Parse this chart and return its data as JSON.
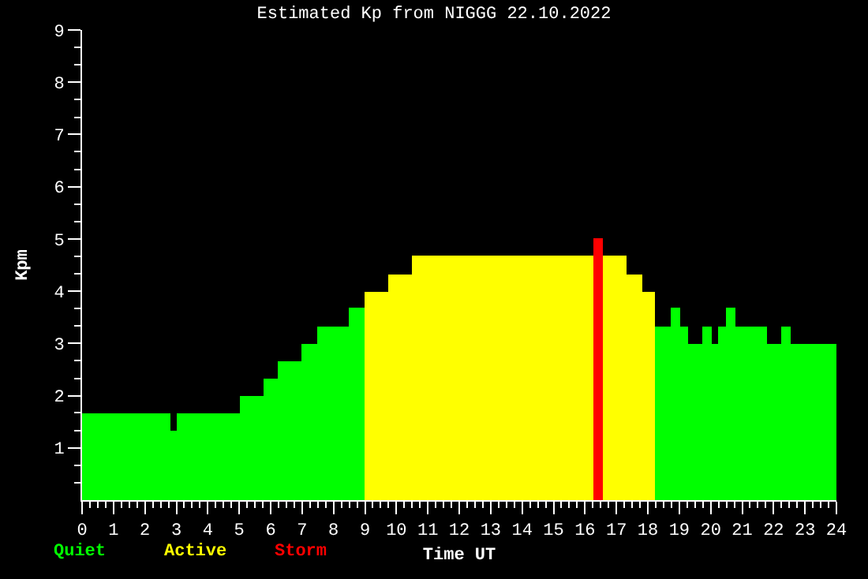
{
  "chart_data": {
    "type": "bar",
    "title": "Estimated Kp from NIGGG 22.10.2022",
    "xlabel": "Time UT",
    "ylabel": "Kpm",
    "x": [
      1.4,
      2.9,
      4.0,
      5.375,
      6.0,
      6.625,
      7.25,
      8.0,
      8.75,
      9.375,
      10.125,
      13.375,
      16.4,
      16.925,
      17.55,
      18.025,
      18.5,
      18.9,
      19.175,
      19.525,
      19.9,
      20.15,
      20.375,
      20.65,
      21.3,
      22.025,
      22.4,
      23.275
    ],
    "series": [
      {
        "name": "Quiet",
        "color": "#00ff00",
        "values": [
          1.67,
          1.33,
          1.67,
          2.0,
          2.33,
          2.67,
          3.0,
          3.33,
          3.67,
          null,
          null,
          null,
          null,
          null,
          null,
          null,
          3.33,
          3.67,
          3.33,
          3.0,
          3.33,
          3.0,
          3.33,
          3.67,
          3.33,
          3.0,
          3.33,
          3.0
        ]
      },
      {
        "name": "Active",
        "color": "#ffff00",
        "values": [
          null,
          null,
          null,
          null,
          null,
          null,
          null,
          null,
          null,
          4.0,
          4.33,
          4.67,
          null,
          4.67,
          4.33,
          4.0,
          null,
          null,
          null,
          null,
          null,
          null,
          null,
          null,
          null,
          null,
          null,
          null
        ]
      },
      {
        "name": "Storm",
        "color": "#ff0000",
        "values": [
          null,
          null,
          null,
          null,
          null,
          null,
          null,
          null,
          null,
          null,
          null,
          null,
          5.0,
          null,
          null,
          null,
          null,
          null,
          null,
          null,
          null,
          null,
          null,
          null,
          null,
          null,
          null,
          null
        ]
      }
    ],
    "xlim": [
      0,
      24
    ],
    "ylim": [
      0,
      9
    ],
    "xticks": [
      0,
      {
        "value": 0.25,
        "label": null
      },
      {
        "value": 0.5,
        "label": null
      },
      {
        "value": 0.75,
        "label": null
      },
      1,
      {
        "value": 1.25,
        "label": null
      },
      {
        "value": 1.5,
        "label": null
      },
      {
        "value": 1.75,
        "label": null
      },
      2,
      {
        "value": 2.25,
        "label": null
      },
      {
        "value": 2.5,
        "label": null
      },
      {
        "value": 2.75,
        "label": null
      },
      3,
      {
        "value": 3.25,
        "label": null
      },
      {
        "value": 3.5,
        "label": null
      },
      {
        "value": 3.75,
        "label": null
      },
      4,
      {
        "value": 4.25,
        "label": null
      },
      {
        "value": 4.5,
        "label": null
      },
      {
        "value": 4.75,
        "label": null
      },
      5,
      {
        "value": 5.25,
        "label": null
      },
      {
        "value": 5.5,
        "label": null
      },
      {
        "value": 5.75,
        "label": null
      },
      6,
      {
        "value": 6.25,
        "label": null
      },
      {
        "value": 6.5,
        "label": null
      },
      {
        "value": 6.75,
        "label": null
      },
      7,
      {
        "value": 7.25,
        "label": null
      },
      {
        "value": 7.5,
        "label": null
      },
      {
        "value": 7.75,
        "label": null
      },
      8,
      {
        "value": 8.25,
        "label": null
      },
      {
        "value": 8.5,
        "label": null
      },
      {
        "value": 8.75,
        "label": null
      },
      9,
      {
        "value": 9.25,
        "label": null
      },
      {
        "value": 9.5,
        "label": null
      },
      {
        "value": 9.75,
        "label": null
      },
      10,
      {
        "value": 10.25,
        "label": null
      },
      {
        "value": 10.5,
        "label": null
      },
      {
        "value": 10.75,
        "label": null
      },
      11,
      {
        "value": 11.25,
        "label": null
      },
      {
        "value": 11.5,
        "label": null
      },
      {
        "value": 11.75,
        "label": null
      },
      12,
      {
        "value": 12.25,
        "label": null
      },
      {
        "value": 12.5,
        "label": null
      },
      {
        "value": 12.75,
        "label": null
      },
      13,
      {
        "value": 13.25,
        "label": null
      },
      {
        "value": 13.5,
        "label": null
      },
      {
        "value": 13.75,
        "label": null
      },
      14,
      {
        "value": 14.25,
        "label": null
      },
      {
        "value": 14.5,
        "label": null
      },
      {
        "value": 14.75,
        "label": null
      },
      15,
      {
        "value": 15.25,
        "label": null
      },
      {
        "value": 15.5,
        "label": null
      },
      {
        "value": 15.75,
        "label": null
      },
      16,
      {
        "value": 16.25,
        "label": null
      },
      {
        "value": 16.5,
        "label": null
      },
      {
        "value": 16.75,
        "label": null
      },
      17,
      {
        "value": 17.25,
        "label": null
      },
      {
        "value": 17.5,
        "label": null
      },
      {
        "value": 17.75,
        "label": null
      },
      18,
      {
        "value": 18.25,
        "label": null
      },
      {
        "value": 18.5,
        "label": null
      },
      {
        "value": 18.75,
        "label": null
      },
      19,
      {
        "value": 19.25,
        "label": null
      },
      {
        "value": 19.5,
        "label": null
      },
      {
        "value": 19.75,
        "label": null
      },
      20,
      {
        "value": 20.25,
        "label": null
      },
      {
        "value": 20.5,
        "label": null
      },
      {
        "value": 20.75,
        "label": null
      },
      21,
      {
        "value": 21.25,
        "label": null
      },
      {
        "value": 21.5,
        "label": null
      },
      {
        "value": 21.75,
        "label": null
      },
      22,
      {
        "value": 22.25,
        "label": null
      },
      {
        "value": 22.5,
        "label": null
      },
      {
        "value": 22.75,
        "label": null
      },
      23,
      {
        "value": 23.25,
        "label": null
      },
      {
        "value": 23.5,
        "label": null
      },
      {
        "value": 23.75,
        "label": null
      },
      24
    ],
    "yticks": [
      {
        "value": 0.33,
        "label": null
      },
      {
        "value": 0.67,
        "label": null
      },
      1,
      {
        "value": 1.33,
        "label": null
      },
      {
        "value": 1.67,
        "label": null
      },
      2,
      {
        "value": 2.33,
        "label": null
      },
      {
        "value": 2.67,
        "label": null
      },
      3,
      {
        "value": 3.33,
        "label": null
      },
      {
        "value": 3.67,
        "label": null
      },
      4,
      {
        "value": 4.33,
        "label": null
      },
      {
        "value": 4.67,
        "label": null
      },
      5,
      {
        "value": 5.33,
        "label": null
      },
      {
        "value": 5.67,
        "label": null
      },
      6,
      {
        "value": 6.33,
        "label": null
      },
      {
        "value": 6.67,
        "label": null
      },
      7,
      {
        "value": 7.33,
        "label": null
      },
      {
        "value": 7.67,
        "label": null
      },
      8,
      {
        "value": 8.33,
        "label": null
      },
      {
        "value": 8.67,
        "label": null
      },
      9
    ],
    "grid": false,
    "legend": "bottom left"
  }
}
